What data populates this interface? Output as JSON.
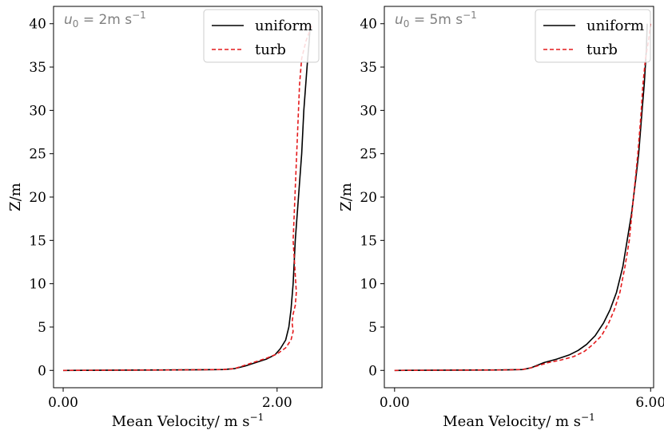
{
  "chart_data": [
    {
      "type": "line",
      "annotation": {
        "prefix": "u",
        "sub": "0",
        "value": " = 2m s",
        "sup": "−1"
      },
      "xlabel": {
        "text": "Mean Velocity/ m s",
        "sup": "−1"
      },
      "ylabel": "Z/m",
      "xlim": [
        -0.09,
        2.42
      ],
      "ylim": [
        -2,
        42
      ],
      "xticks": [
        0.0,
        2.0
      ],
      "xtick_labels": [
        "0.00",
        "2.00"
      ],
      "yticks": [
        0,
        5,
        10,
        15,
        20,
        25,
        30,
        35,
        40
      ],
      "legend": {
        "placement": "top-right",
        "entries": [
          "uniform",
          "turb"
        ]
      },
      "series": [
        {
          "name": "uniform",
          "color": "#000000",
          "dash": "solid",
          "points": [
            [
              0.0,
              0.0
            ],
            [
              1.0,
              0.05
            ],
            [
              1.5,
              0.1
            ],
            [
              1.6,
              0.2
            ],
            [
              1.7,
              0.5
            ],
            [
              1.8,
              0.9
            ],
            [
              1.9,
              1.3
            ],
            [
              1.98,
              1.8
            ],
            [
              2.03,
              2.5
            ],
            [
              2.08,
              3.5
            ],
            [
              2.11,
              5.0
            ],
            [
              2.13,
              7.0
            ],
            [
              2.15,
              10.0
            ],
            [
              2.17,
              15.0
            ],
            [
              2.2,
              20.0
            ],
            [
              2.23,
              25.0
            ],
            [
              2.25,
              30.0
            ],
            [
              2.28,
              35.0
            ],
            [
              2.3,
              38.0
            ],
            [
              2.31,
              40.0
            ]
          ]
        },
        {
          "name": "turb",
          "color": "#e41a1c",
          "dash": "dashed",
          "points": [
            [
              0.0,
              0.0
            ],
            [
              1.0,
              0.05
            ],
            [
              1.5,
              0.1
            ],
            [
              1.6,
              0.2
            ],
            [
              1.7,
              0.6
            ],
            [
              1.8,
              1.0
            ],
            [
              1.9,
              1.4
            ],
            [
              2.0,
              1.9
            ],
            [
              2.08,
              2.6
            ],
            [
              2.13,
              3.5
            ],
            [
              2.15,
              4.5
            ],
            [
              2.14,
              5.5
            ],
            [
              2.15,
              6.5
            ],
            [
              2.17,
              7.5
            ],
            [
              2.18,
              9.0
            ],
            [
              2.17,
              11.0
            ],
            [
              2.16,
              13.0
            ],
            [
              2.15,
              15.0
            ],
            [
              2.16,
              18.0
            ],
            [
              2.17,
              21.0
            ],
            [
              2.18,
              24.0
            ],
            [
              2.19,
              27.0
            ],
            [
              2.2,
              30.0
            ],
            [
              2.21,
              33.0
            ],
            [
              2.23,
              36.0
            ],
            [
              2.27,
              38.0
            ],
            [
              2.33,
              40.0
            ]
          ]
        }
      ]
    },
    {
      "type": "line",
      "annotation": {
        "prefix": "u",
        "sub": "0",
        "value": " = 5m s",
        "sup": "−1"
      },
      "xlabel": {
        "text": "Mean Velocity/ m s",
        "sup": "−1"
      },
      "ylabel": "Z/m",
      "xlim": [
        -0.24,
        6.07
      ],
      "ylim": [
        -2,
        42
      ],
      "xticks": [
        0.0,
        6.0
      ],
      "xtick_labels": [
        "0.00",
        "6.00"
      ],
      "yticks": [
        0,
        5,
        10,
        15,
        20,
        25,
        30,
        35,
        40
      ],
      "legend": {
        "placement": "top-right",
        "entries": [
          "uniform",
          "turb"
        ]
      },
      "series": [
        {
          "name": "uniform",
          "color": "#000000",
          "dash": "solid",
          "points": [
            [
              0.0,
              0.0
            ],
            [
              2.5,
              0.05
            ],
            [
              3.0,
              0.1
            ],
            [
              3.2,
              0.3
            ],
            [
              3.5,
              0.9
            ],
            [
              3.8,
              1.3
            ],
            [
              4.1,
              1.8
            ],
            [
              4.3,
              2.3
            ],
            [
              4.5,
              3.0
            ],
            [
              4.7,
              4.0
            ],
            [
              4.9,
              5.5
            ],
            [
              5.05,
              7.0
            ],
            [
              5.2,
              9.0
            ],
            [
              5.35,
              12.0
            ],
            [
              5.45,
              15.0
            ],
            [
              5.55,
              18.0
            ],
            [
              5.6,
              20.0
            ],
            [
              5.65,
              22.0
            ],
            [
              5.72,
              25.0
            ],
            [
              5.8,
              30.0
            ],
            [
              5.85,
              33.0
            ],
            [
              5.9,
              37.0
            ],
            [
              5.92,
              40.0
            ]
          ]
        },
        {
          "name": "turb",
          "color": "#e41a1c",
          "dash": "dashed",
          "points": [
            [
              0.0,
              0.0
            ],
            [
              2.5,
              0.05
            ],
            [
              3.0,
              0.1
            ],
            [
              3.2,
              0.3
            ],
            [
              3.6,
              0.9
            ],
            [
              3.9,
              1.2
            ],
            [
              4.2,
              1.6
            ],
            [
              4.45,
              2.2
            ],
            [
              4.65,
              3.0
            ],
            [
              4.85,
              4.0
            ],
            [
              5.02,
              5.5
            ],
            [
              5.15,
              7.0
            ],
            [
              5.28,
              9.0
            ],
            [
              5.4,
              12.0
            ],
            [
              5.5,
              15.0
            ],
            [
              5.56,
              18.0
            ],
            [
              5.6,
              20.0
            ],
            [
              5.64,
              22.0
            ],
            [
              5.7,
              25.0
            ],
            [
              5.75,
              28.0
            ],
            [
              5.78,
              30.0
            ],
            [
              5.82,
              33.0
            ],
            [
              5.88,
              36.0
            ],
            [
              5.95,
              38.0
            ],
            [
              6.0,
              40.0
            ]
          ]
        }
      ]
    }
  ]
}
